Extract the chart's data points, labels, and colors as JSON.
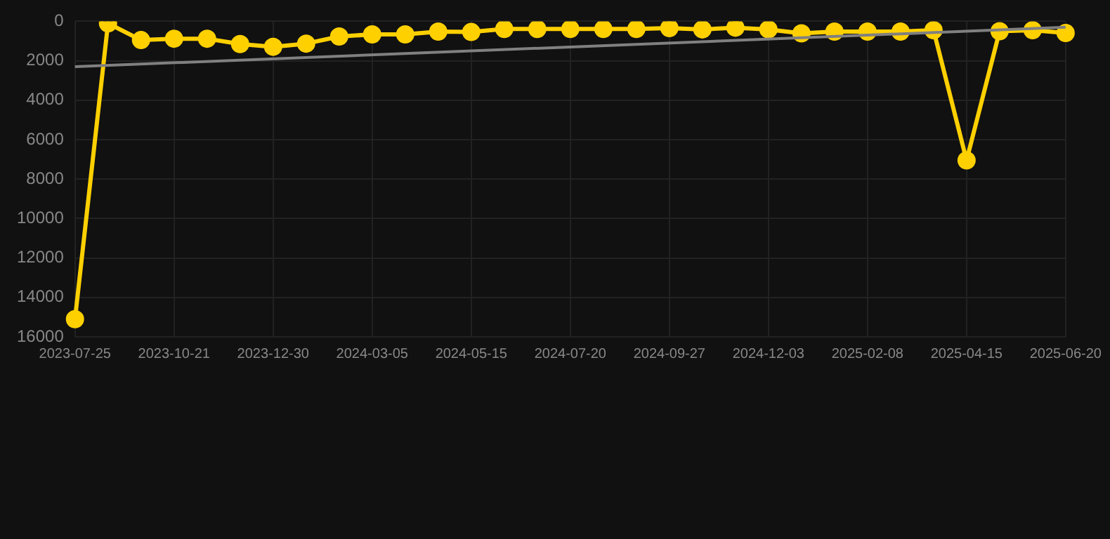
{
  "chart_data": {
    "type": "line",
    "categories": [
      "2023-07-25",
      null,
      null,
      "2023-10-21",
      null,
      null,
      "2023-12-30",
      null,
      null,
      "2024-03-05",
      null,
      null,
      "2024-05-15",
      null,
      null,
      "2024-07-20",
      null,
      null,
      "2024-09-27",
      null,
      null,
      "2024-12-03",
      null,
      null,
      "2025-02-08",
      null,
      null,
      "2025-04-15",
      null,
      null,
      "2025-06-20"
    ],
    "series": [
      {
        "color": "#ffd000",
        "marker": "circle",
        "values": [
          15100,
          100,
          950,
          880,
          880,
          1150,
          1290,
          1130,
          770,
          660,
          660,
          520,
          540,
          390,
          390,
          390,
          390,
          390,
          340,
          410,
          320,
          410,
          610,
          520,
          520,
          520,
          450,
          7050,
          500,
          450,
          590
        ]
      },
      {
        "type": "line",
        "color": "#808080",
        "marker": "none",
        "values": [
          2300,
          null,
          null,
          null,
          null,
          null,
          null,
          null,
          null,
          null,
          null,
          null,
          null,
          null,
          null,
          null,
          null,
          null,
          null,
          null,
          null,
          null,
          null,
          null,
          null,
          null,
          null,
          null,
          null,
          null,
          300
        ]
      }
    ],
    "ylim": [
      16000,
      0
    ],
    "yticks": [
      0,
      2000,
      4000,
      6000,
      8000,
      10000,
      12000,
      14000,
      16000
    ],
    "grid": true,
    "legend": false
  }
}
